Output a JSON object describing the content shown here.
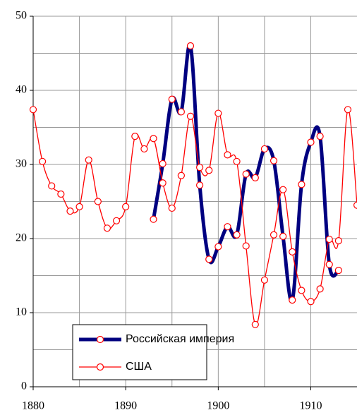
{
  "chart_data": {
    "type": "line",
    "x": [
      1880,
      1881,
      1882,
      1883,
      1884,
      1885,
      1886,
      1887,
      1888,
      1889,
      1890,
      1891,
      1892,
      1893,
      1894,
      1895,
      1896,
      1897,
      1898,
      1899,
      1900,
      1901,
      1902,
      1903,
      1904,
      1905,
      1906,
      1907,
      1908,
      1909,
      1910,
      1911,
      1912,
      1913,
      1914,
      1915
    ],
    "series": [
      {
        "name": "Российская империя",
        "color": "#000080",
        "marker_color": "#ff0000",
        "values": [
          null,
          null,
          null,
          null,
          null,
          null,
          null,
          null,
          null,
          null,
          null,
          null,
          null,
          22.6,
          30.1,
          38.8,
          37.1,
          46.0,
          27.2,
          17.2,
          18.9,
          21.6,
          20.5,
          28.7,
          28.2,
          32.1,
          30.5,
          20.3,
          11.7,
          27.3,
          33.0,
          33.8,
          16.5,
          15.7,
          null,
          null
        ]
      },
      {
        "name": "США",
        "color": "#ff0000",
        "marker_color": "#ff0000",
        "values": [
          37.4,
          30.4,
          27.1,
          26.0,
          23.7,
          24.3,
          30.6,
          25.0,
          21.4,
          22.4,
          24.3,
          33.8,
          32.1,
          33.5,
          27.5,
          24.1,
          28.5,
          36.5,
          29.6,
          29.2,
          36.9,
          31.3,
          30.4,
          19.0,
          8.4,
          14.4,
          20.5,
          26.6,
          18.2,
          13.0,
          11.5,
          13.2,
          19.9,
          19.7,
          37.4,
          24.5
        ]
      }
    ],
    "xlim": [
      1880,
      1915
    ],
    "xticks": [
      1880,
      1890,
      1900,
      1910
    ],
    "xgrid": [
      1885,
      1890,
      1895,
      1900,
      1905,
      1910
    ],
    "ylim": [
      0,
      50
    ],
    "yticks": [
      0,
      10,
      20,
      30,
      40,
      50
    ],
    "ygrid": [
      5,
      10,
      15,
      20,
      25,
      30,
      35,
      40,
      45,
      50
    ],
    "grid": true,
    "legend": "lower left"
  }
}
